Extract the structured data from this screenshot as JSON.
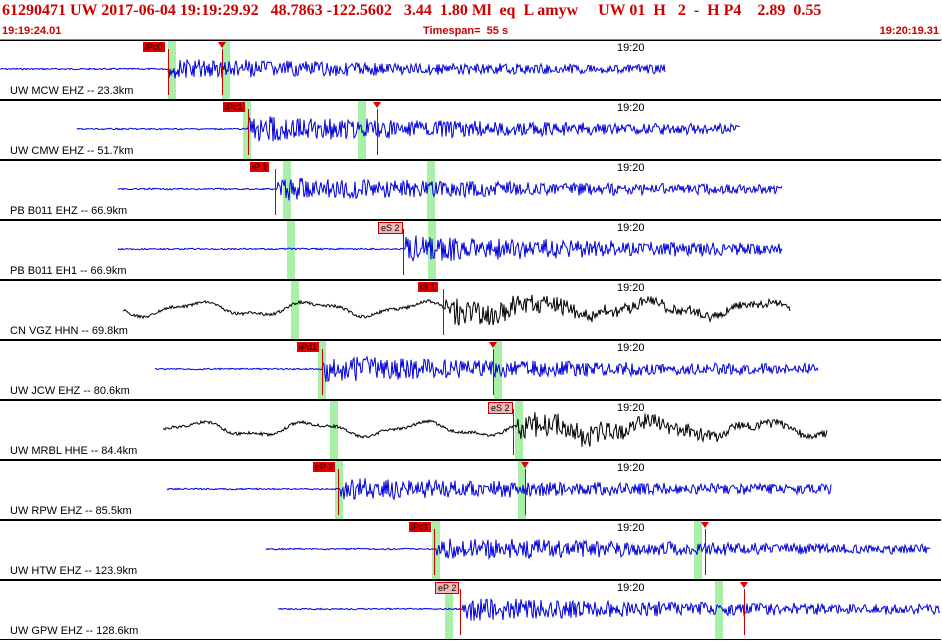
{
  "header": {
    "title": "61290471 UW 2017-06-04 19:19:29.92   48.7863 -122.5602   3.44  1.80 Ml  eq  L amyw     UW 01  H   2  -  H P4    2.89  0.55",
    "start_time": "19:19:24.01",
    "timespan": "Timespan=  55 s",
    "end_time": "19:20:19.31"
  },
  "colors": {
    "trace_blue": "#0000dd",
    "trace_black": "#000000",
    "pick_red": "#e00000",
    "window_green": "#a8f0a8"
  },
  "time_tick": "19:20",
  "traces": [
    {
      "station": "UW MCW EHZ -- 23.3km",
      "color": "blue",
      "start": 0,
      "end": 665,
      "onset": 168,
      "amp": 8,
      "picks": [
        {
          "label": "iPc0",
          "color": "red",
          "x": 143
        },
        {
          "label": "",
          "color": "red",
          "x": 222
        }
      ],
      "windows": [
        168,
        222
      ]
    },
    {
      "station": "UW CMW EHZ -- 51.7km",
      "color": "blue",
      "start": 77,
      "end": 740,
      "onset": 248,
      "amp": 10,
      "picks": [
        {
          "label": "iPc1",
          "color": "red",
          "x": 223
        },
        {
          "label": "",
          "color": "red",
          "x": 377
        }
      ],
      "windows": [
        243,
        358
      ]
    },
    {
      "station": "PB B011 EHZ -- 66.9km",
      "color": "blue",
      "start": 118,
      "end": 782,
      "onset": 277,
      "amp": 9,
      "picks": [
        {
          "label": "iP 1",
          "color": "red",
          "x": 250
        }
      ],
      "windows": [
        283,
        427
      ]
    },
    {
      "station": "PB B011 EH1 -- 66.9km",
      "color": "blue",
      "start": 118,
      "end": 782,
      "onset": 405,
      "amp": 10,
      "picks": [
        {
          "label": "eS 2",
          "color": "pink",
          "x": 378
        }
      ],
      "windows": [
        287,
        428
      ]
    },
    {
      "station": "CN VGZ HHN -- 69.8km",
      "color": "black",
      "start": 123,
      "end": 790,
      "onset": 445,
      "amp": 12,
      "picks": [
        {
          "label": "iS 1",
          "color": "red",
          "x": 418
        }
      ],
      "windows": [
        291
      ]
    },
    {
      "station": "UW JCW EHZ -- 80.6km",
      "color": "blue",
      "start": 155,
      "end": 818,
      "onset": 322,
      "amp": 10,
      "picks": [
        {
          "label": "iPd1",
          "color": "red",
          "x": 297
        },
        {
          "label": "",
          "color": "red",
          "x": 493
        }
      ],
      "windows": [
        318,
        494
      ]
    },
    {
      "station": "UW MRBL HHE -- 84.4km",
      "color": "black",
      "start": 163,
      "end": 827,
      "onset": 515,
      "amp": 12,
      "picks": [
        {
          "label": "eS 2",
          "color": "pink",
          "x": 488
        }
      ],
      "windows": [
        330,
        515
      ]
    },
    {
      "station": "UW RPW EHZ -- 85.5km",
      "color": "blue",
      "start": 167,
      "end": 831,
      "onset": 340,
      "amp": 9,
      "picks": [
        {
          "label": "eP 2",
          "color": "red",
          "x": 313
        },
        {
          "label": "",
          "color": "red",
          "x": 525
        }
      ],
      "windows": [
        335,
        518
      ]
    },
    {
      "station": "UW HTW EHZ -- 123.9km",
      "color": "blue",
      "start": 266,
      "end": 930,
      "onset": 436,
      "amp": 9,
      "picks": [
        {
          "label": "iPc1",
          "color": "red",
          "x": 409
        },
        {
          "label": "",
          "color": "red",
          "x": 705
        }
      ],
      "windows": [
        432,
        694
      ]
    },
    {
      "station": "UW GPW EHZ -- 128.6km",
      "color": "blue",
      "start": 278,
      "end": 940,
      "onset": 462,
      "amp": 9,
      "picks": [
        {
          "label": "eP 2",
          "color": "pink",
          "x": 435
        },
        {
          "label": "",
          "color": "red",
          "x": 744
        }
      ],
      "windows": [
        445,
        715
      ]
    }
  ]
}
